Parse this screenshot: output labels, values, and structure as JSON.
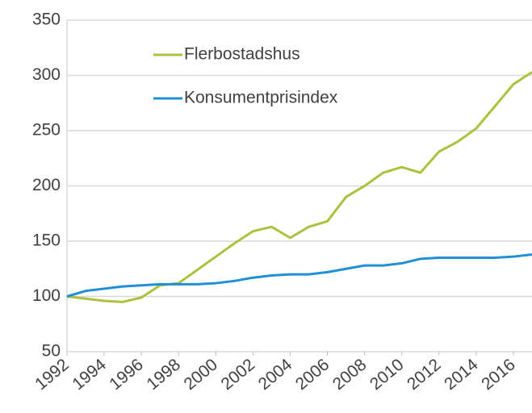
{
  "chart_data": {
    "type": "line",
    "x": [
      1992,
      1993,
      1994,
      1995,
      1996,
      1997,
      1998,
      1999,
      2000,
      2001,
      2002,
      2003,
      2004,
      2005,
      2006,
      2007,
      2008,
      2009,
      2010,
      2011,
      2012,
      2013,
      2014,
      2015,
      2016,
      2017
    ],
    "series": [
      {
        "name": "Flerbostadshus",
        "color": "#a9c23f",
        "values": [
          100,
          98,
          96,
          95,
          99,
          110,
          112,
          124,
          136,
          148,
          159,
          163,
          153,
          163,
          168,
          190,
          200,
          212,
          217,
          212,
          231,
          240,
          252,
          272,
          292,
          303
        ]
      },
      {
        "name": "Konsumentprisindex",
        "color": "#1f8fd6",
        "values": [
          100,
          105,
          107,
          109,
          110,
          111,
          111,
          111,
          112,
          114,
          117,
          119,
          120,
          120,
          122,
          125,
          128,
          128,
          130,
          134,
          135,
          135,
          135,
          135,
          136,
          138
        ]
      }
    ],
    "xlim": [
      1992,
      2017
    ],
    "xticks": [
      1992,
      1994,
      1996,
      1998,
      2000,
      2002,
      2004,
      2006,
      2008,
      2010,
      2012,
      2014,
      2016
    ],
    "ylim": [
      50,
      350
    ],
    "yticks": [
      50,
      100,
      150,
      200,
      250,
      300,
      350
    ],
    "grid": true,
    "legend": "top-left"
  }
}
